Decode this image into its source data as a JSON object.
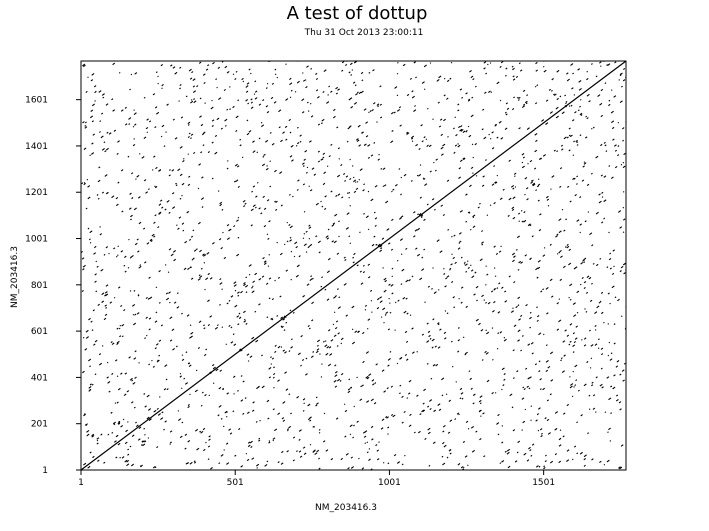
{
  "chart_data": {
    "type": "scatter",
    "title": "A test of dottup",
    "subtitle": "Thu 31 Oct 2013 23:00:11",
    "xlabel": "NM_203416.3",
    "ylabel": "NM_203416.3",
    "xlim": [
      1,
      1768
    ],
    "ylim": [
      1,
      1768
    ],
    "x_ticks": [
      1,
      501,
      1001,
      1501
    ],
    "y_ticks": [
      1,
      201,
      401,
      601,
      801,
      1001,
      1201,
      1401,
      1601
    ],
    "grid": false,
    "series": [
      {
        "values": [
          [
            1,
            1
          ],
          [
            1768,
            1768
          ]
        ],
        "style": "diagonal-line"
      }
    ],
    "dot_density": "approx 2300 short dot-match marks scattered uniformly over the plot",
    "color": "#000000"
  }
}
